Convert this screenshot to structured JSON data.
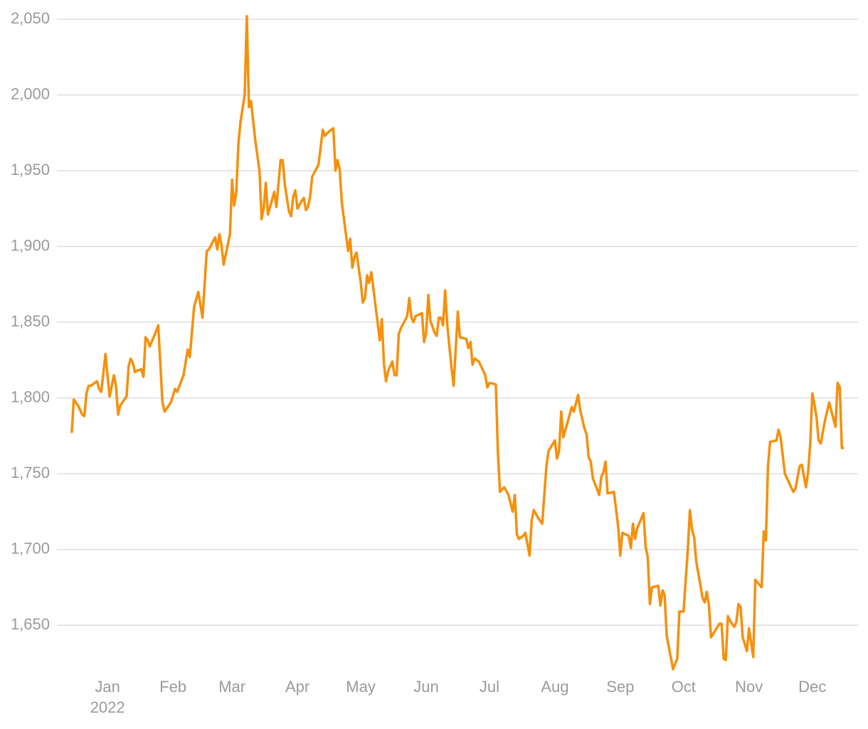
{
  "chart_data": {
    "type": "line",
    "x": [
      -17,
      -16,
      -14,
      -12,
      -11,
      -10,
      -9,
      -8,
      -5,
      -4,
      -3,
      -1,
      1,
      3,
      4,
      5,
      6,
      9,
      10,
      11,
      12,
      13,
      14,
      16,
      17,
      18,
      19,
      20,
      23,
      24,
      26,
      27,
      30,
      32,
      33,
      36,
      38,
      39,
      41,
      43,
      45,
      47,
      48,
      51,
      52,
      53,
      54,
      55,
      58,
      59,
      60,
      61,
      62,
      63,
      65,
      66,
      67,
      68,
      70,
      72,
      73,
      74,
      75,
      76,
      78,
      79,
      80,
      82,
      83,
      84,
      86,
      87,
      88,
      89,
      90,
      92,
      93,
      94,
      95,
      96,
      97,
      100,
      102,
      103,
      105,
      107,
      108,
      109,
      110,
      111,
      114,
      115,
      116,
      117,
      118,
      120,
      121,
      122,
      123,
      124,
      125,
      127,
      129,
      130,
      131,
      132,
      133,
      135,
      136,
      137,
      138,
      139,
      142,
      143,
      144,
      145,
      146,
      149,
      150,
      151,
      152,
      153,
      155,
      156,
      157,
      158,
      159,
      160,
      161,
      163,
      164,
      166,
      167,
      170,
      171,
      172,
      173,
      174,
      176,
      178,
      179,
      180,
      181,
      184,
      185,
      186,
      188,
      190,
      192,
      193,
      194,
      195,
      197,
      198,
      200,
      201,
      202,
      204,
      206,
      208,
      209,
      212,
      213,
      214,
      215,
      216,
      218,
      220,
      221,
      223,
      224,
      226,
      227,
      228,
      229,
      230,
      233,
      234,
      235,
      236,
      237,
      240,
      242,
      243,
      244,
      247,
      248,
      249,
      250,
      251,
      254,
      255,
      256,
      257,
      258,
      261,
      262,
      263,
      264,
      265,
      268,
      270,
      271,
      273,
      275,
      276,
      277,
      278,
      279,
      282,
      283,
      284,
      285,
      286,
      290,
      291,
      292,
      293,
      294,
      295,
      297,
      298,
      299,
      300,
      301,
      303,
      304,
      306,
      307,
      310,
      311,
      312,
      313,
      314,
      317,
      318,
      319,
      321,
      325,
      326,
      328,
      329,
      331,
      332,
      333,
      334,
      335,
      336,
      337,
      338,
      340,
      342,
      345,
      346,
      347,
      348,
      349
    ],
    "series": [
      {
        "color": "#f5900c",
        "values": [
          1777,
          1799,
          1795,
          1789,
          1788,
          1803,
          1808,
          1808,
          1811,
          1806,
          1804,
          1829,
          1801,
          1815,
          1808,
          1789,
          1795,
          1801,
          1821,
          1826,
          1823,
          1817,
          1818,
          1819,
          1814,
          1840,
          1838,
          1834,
          1844,
          1848,
          1797,
          1791,
          1797,
          1806,
          1804,
          1815,
          1832,
          1827,
          1860,
          1870,
          1853,
          1897,
          1898,
          1906,
          1898,
          1908,
          1901,
          1888,
          1908,
          1944,
          1927,
          1936,
          1968,
          1982,
          2000,
          2052,
          1992,
          1996,
          1970,
          1950,
          1918,
          1925,
          1942,
          1921,
          1931,
          1936,
          1926,
          1957,
          1957,
          1941,
          1923,
          1920,
          1933,
          1937,
          1925,
          1930,
          1932,
          1924,
          1926,
          1933,
          1946,
          1954,
          1977,
          1973,
          1976,
          1978,
          1950,
          1957,
          1951,
          1929,
          1897,
          1905,
          1886,
          1893,
          1896,
          1876,
          1863,
          1866,
          1881,
          1876,
          1883,
          1861,
          1838,
          1852,
          1822,
          1811,
          1818,
          1824,
          1815,
          1815,
          1842,
          1846,
          1854,
          1866,
          1853,
          1850,
          1854,
          1856,
          1837,
          1843,
          1868,
          1851,
          1843,
          1841,
          1853,
          1853,
          1848,
          1871,
          1848,
          1820,
          1808,
          1857,
          1840,
          1839,
          1833,
          1837,
          1822,
          1826,
          1824,
          1818,
          1815,
          1807,
          1810,
          1809,
          1764,
          1738,
          1741,
          1736,
          1725,
          1736,
          1710,
          1707,
          1709,
          1711,
          1696,
          1719,
          1726,
          1721,
          1717,
          1755,
          1765,
          1772,
          1760,
          1765,
          1791,
          1774,
          1784,
          1794,
          1791,
          1802,
          1792,
          1780,
          1776,
          1761,
          1758,
          1747,
          1736,
          1748,
          1751,
          1758,
          1737,
          1738,
          1715,
          1696,
          1711,
          1709,
          1701,
          1717,
          1707,
          1714,
          1724,
          1702,
          1695,
          1664,
          1675,
          1676,
          1663,
          1673,
          1670,
          1643,
          1621,
          1628,
          1659,
          1659,
          1700,
          1726,
          1713,
          1708,
          1692,
          1668,
          1665,
          1672,
          1663,
          1642,
          1651,
          1651,
          1628,
          1627,
          1656,
          1653,
          1649,
          1652,
          1664,
          1662,
          1642,
          1633,
          1648,
          1629,
          1680,
          1675,
          1712,
          1706,
          1755,
          1771,
          1772,
          1779,
          1774,
          1750,
          1738,
          1740,
          1755,
          1756,
          1741,
          1751,
          1770,
          1803,
          1796,
          1787,
          1772,
          1770,
          1785,
          1797,
          1781,
          1810,
          1807,
          1767,
          1767
        ]
      }
    ],
    "xlim": [
      -24,
      355
    ],
    "xticks": [
      {
        "value": 0,
        "label": "Jan"
      },
      {
        "value": 31,
        "label": "Feb"
      },
      {
        "value": 59,
        "label": "Mar"
      },
      {
        "value": 90,
        "label": "Apr"
      },
      {
        "value": 120,
        "label": "May"
      },
      {
        "value": 151,
        "label": "Jun"
      },
      {
        "value": 181,
        "label": "Jul"
      },
      {
        "value": 212,
        "label": "Aug"
      },
      {
        "value": 243,
        "label": "Sep"
      },
      {
        "value": 273,
        "label": "Oct"
      },
      {
        "value": 304,
        "label": "Nov"
      },
      {
        "value": 334,
        "label": "Dec"
      }
    ],
    "x_axis_year": "2022",
    "ylim": [
      1620,
      2050
    ],
    "yticks": [
      {
        "value": 1650,
        "label": "1,650"
      },
      {
        "value": 1700,
        "label": "1,700"
      },
      {
        "value": 1750,
        "label": "1,750"
      },
      {
        "value": 1800,
        "label": "1,800"
      },
      {
        "value": 1850,
        "label": "1,850"
      },
      {
        "value": 1900,
        "label": "1,900"
      },
      {
        "value": 1950,
        "label": "1,950"
      },
      {
        "value": 2000,
        "label": "2,000"
      },
      {
        "value": 2050,
        "label": "2,050"
      }
    ],
    "grid": true
  }
}
